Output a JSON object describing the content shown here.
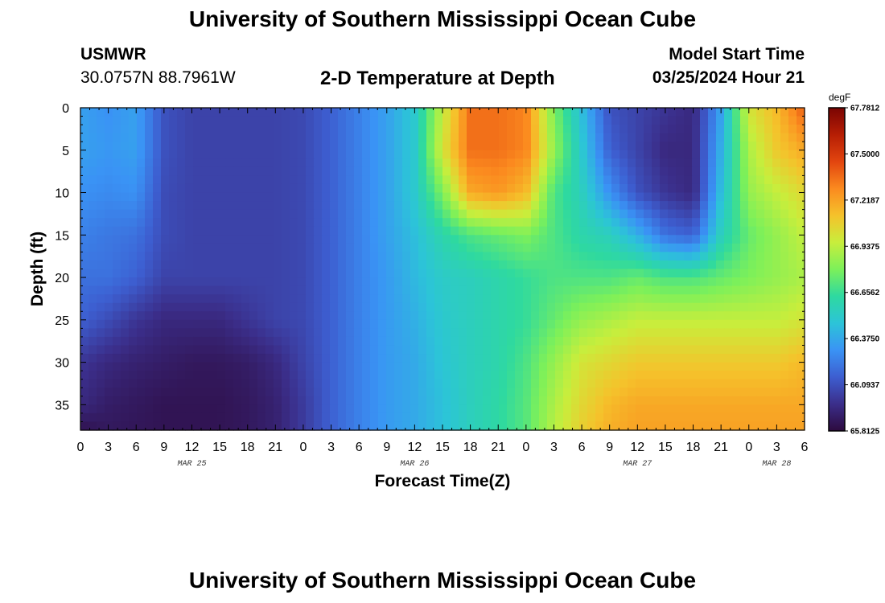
{
  "page": {
    "title": "University of Southern Mississippi Ocean Cube",
    "station": "USMWR",
    "coords": "30.0757N  88.7961W",
    "subtitle": "2-D Temperature at Depth",
    "model_start_label": "Model Start Time",
    "model_start_value": "03/25/2024 Hour 21",
    "footer_title": "University of Southern Mississippi Ocean Cube"
  },
  "chart_data": {
    "type": "heatmap",
    "xlabel": "Forecast Time(Z)",
    "ylabel": "Depth (ft)",
    "x_range_hours": [
      0,
      78
    ],
    "x_ticks": [
      "0",
      "3",
      "6",
      "9",
      "12",
      "15",
      "18",
      "21",
      "0",
      "3",
      "6",
      "9",
      "12",
      "15",
      "18",
      "21",
      "0",
      "3",
      "6",
      "9",
      "12",
      "15",
      "18",
      "21",
      "0",
      "3",
      "6"
    ],
    "date_labels": [
      {
        "label": "MAR 25",
        "hour": 12
      },
      {
        "label": "MAR 26",
        "hour": 36
      },
      {
        "label": "MAR 27",
        "hour": 60
      },
      {
        "label": "MAR 28",
        "hour": 75
      }
    ],
    "y_range_ft": [
      0,
      38
    ],
    "y_ticks": [
      "0",
      "5",
      "10",
      "15",
      "20",
      "25",
      "30",
      "35"
    ],
    "colorbar": {
      "unit": "degF",
      "min": 65.8125,
      "max": 67.7812,
      "tick_labels": [
        "67.7812",
        "67.5000",
        "67.2187",
        "66.9375",
        "66.6562",
        "66.3750",
        "66.0937",
        "65.8125"
      ],
      "colors": [
        "#2d0a3e",
        "#3b2e8a",
        "#3d5ed0",
        "#3a93f5",
        "#2cc4d8",
        "#2ed9a0",
        "#7cf05a",
        "#c8ee3c",
        "#f5c22b",
        "#fb8a1f",
        "#e2450f",
        "#b61e04",
        "#7a0403"
      ]
    },
    "depths_ft": [
      0,
      5,
      10,
      15,
      20,
      25,
      30,
      35,
      38
    ],
    "hours": [
      0,
      3,
      6,
      9,
      12,
      15,
      18,
      21,
      24,
      27,
      30,
      33,
      36,
      39,
      42,
      45,
      48,
      51,
      54,
      57,
      60,
      63,
      66,
      69,
      72,
      75,
      78
    ],
    "values": [
      [
        66.35,
        66.3,
        66.35,
        66.1,
        66.05,
        66.05,
        66.05,
        66.05,
        66.07,
        66.15,
        66.25,
        66.35,
        66.5,
        66.95,
        67.35,
        67.35,
        67.3,
        66.8,
        66.45,
        66.1,
        66.05,
        66.0,
        65.95,
        66.35,
        67.0,
        67.15,
        67.4
      ],
      [
        66.35,
        66.32,
        66.35,
        66.1,
        66.05,
        66.05,
        66.05,
        66.05,
        66.07,
        66.15,
        66.25,
        66.35,
        66.5,
        67.0,
        67.35,
        67.35,
        67.3,
        66.85,
        66.5,
        66.15,
        66.05,
        65.95,
        65.95,
        66.4,
        66.9,
        67.1,
        67.2
      ],
      [
        66.3,
        66.28,
        66.3,
        66.08,
        66.05,
        66.05,
        66.05,
        66.05,
        66.07,
        66.15,
        66.25,
        66.35,
        66.5,
        66.8,
        67.2,
        67.25,
        67.15,
        66.7,
        66.55,
        66.3,
        66.1,
        66.0,
        65.95,
        66.45,
        66.85,
        66.95,
        67.05
      ],
      [
        66.25,
        66.22,
        66.2,
        66.08,
        66.05,
        66.05,
        66.05,
        66.05,
        66.07,
        66.15,
        66.25,
        66.35,
        66.45,
        66.6,
        66.7,
        66.75,
        66.8,
        66.7,
        66.6,
        66.55,
        66.4,
        66.2,
        66.15,
        66.55,
        66.75,
        66.85,
        66.95
      ],
      [
        66.2,
        66.2,
        66.15,
        66.05,
        66.05,
        66.05,
        66.05,
        66.05,
        66.07,
        66.15,
        66.25,
        66.33,
        66.43,
        66.52,
        66.55,
        66.6,
        66.65,
        66.7,
        66.7,
        66.7,
        66.75,
        66.7,
        66.7,
        66.75,
        66.8,
        66.85,
        66.9
      ],
      [
        66.15,
        66.08,
        66.0,
        65.95,
        65.95,
        65.95,
        66.0,
        66.05,
        66.07,
        66.15,
        66.25,
        66.33,
        66.4,
        66.5,
        66.55,
        66.6,
        66.65,
        66.75,
        66.85,
        66.9,
        66.95,
        66.95,
        66.95,
        66.95,
        66.95,
        66.95,
        67.0
      ],
      [
        66.0,
        65.95,
        65.92,
        65.9,
        65.88,
        65.88,
        65.9,
        65.95,
        66.05,
        66.15,
        66.25,
        66.33,
        66.38,
        66.48,
        66.55,
        66.6,
        66.7,
        66.85,
        67.0,
        67.05,
        67.1,
        67.1,
        67.1,
        67.1,
        67.1,
        67.1,
        67.15
      ],
      [
        65.95,
        65.9,
        65.88,
        65.86,
        65.86,
        65.86,
        65.88,
        65.92,
        66.02,
        66.15,
        66.25,
        66.33,
        66.38,
        66.46,
        66.55,
        66.62,
        66.72,
        66.9,
        67.05,
        67.15,
        67.2,
        67.2,
        67.2,
        67.2,
        67.2,
        67.2,
        67.2
      ],
      [
        65.85,
        65.88,
        65.87,
        65.86,
        65.86,
        65.86,
        65.88,
        65.92,
        66.02,
        66.15,
        66.25,
        66.33,
        66.38,
        66.46,
        66.55,
        66.62,
        66.72,
        66.92,
        67.08,
        67.18,
        67.22,
        67.22,
        67.22,
        67.22,
        67.22,
        67.22,
        67.22
      ]
    ]
  }
}
